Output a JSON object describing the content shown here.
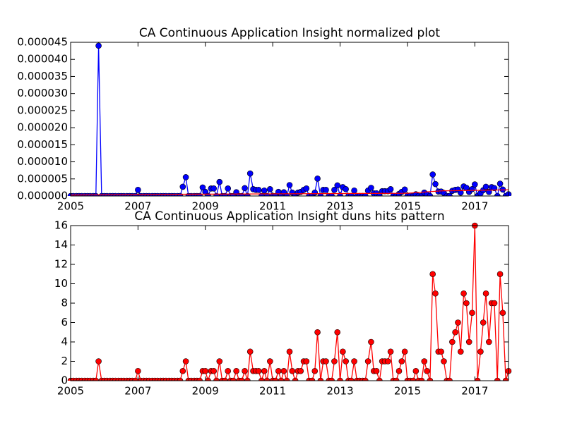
{
  "chart_data": [
    {
      "type": "line",
      "title": "CA Continuous Application Insight normalized plot",
      "x": [
        2005,
        2005.08,
        2005.17,
        2005.25,
        2005.33,
        2005.42,
        2005.5,
        2005.58,
        2005.67,
        2005.75,
        2005.83,
        2005.92,
        2006,
        2006.08,
        2006.17,
        2006.25,
        2006.33,
        2006.42,
        2006.5,
        2006.58,
        2006.67,
        2006.75,
        2006.83,
        2006.92,
        2007,
        2007.08,
        2007.17,
        2007.25,
        2007.33,
        2007.42,
        2007.5,
        2007.58,
        2007.67,
        2007.75,
        2007.83,
        2007.92,
        2008,
        2008.08,
        2008.17,
        2008.25,
        2008.33,
        2008.42,
        2008.5,
        2008.58,
        2008.67,
        2008.75,
        2008.83,
        2008.92,
        2009,
        2009.08,
        2009.17,
        2009.25,
        2009.33,
        2009.42,
        2009.5,
        2009.58,
        2009.67,
        2009.75,
        2009.83,
        2009.92,
        2010,
        2010.08,
        2010.17,
        2010.25,
        2010.33,
        2010.42,
        2010.5,
        2010.58,
        2010.67,
        2010.75,
        2010.83,
        2010.92,
        2011,
        2011.08,
        2011.17,
        2011.25,
        2011.33,
        2011.42,
        2011.5,
        2011.58,
        2011.67,
        2011.75,
        2011.83,
        2011.92,
        2012,
        2012.08,
        2012.17,
        2012.25,
        2012.33,
        2012.42,
        2012.5,
        2012.58,
        2012.67,
        2012.75,
        2012.83,
        2012.92,
        2013,
        2013.08,
        2013.17,
        2013.25,
        2013.33,
        2013.42,
        2013.5,
        2013.58,
        2013.67,
        2013.75,
        2013.83,
        2013.92,
        2014,
        2014.08,
        2014.17,
        2014.25,
        2014.33,
        2014.42,
        2014.5,
        2014.58,
        2014.67,
        2014.75,
        2014.83,
        2014.92,
        2015,
        2015.08,
        2015.17,
        2015.25,
        2015.33,
        2015.42,
        2015.5,
        2015.58,
        2015.67,
        2015.75,
        2015.83,
        2015.92,
        2016,
        2016.08,
        2016.17,
        2016.25,
        2016.33,
        2016.42,
        2016.5,
        2016.58,
        2016.67,
        2016.75,
        2016.83,
        2016.92,
        2017,
        2017.08,
        2017.17,
        2017.25,
        2017.33,
        2017.42,
        2017.5,
        2017.58,
        2017.67,
        2017.75,
        2017.83,
        2017.92,
        2018
      ],
      "series": [
        {
          "color": "#0000ff",
          "marker": true,
          "values": [
            0,
            0,
            0,
            0,
            0,
            0,
            0,
            0,
            0,
            0,
            4.4e-05,
            0,
            0,
            0,
            0,
            0,
            0,
            0,
            0,
            0,
            0,
            0,
            0,
            0,
            1.8e-06,
            0,
            0,
            0,
            0,
            0,
            0,
            0,
            0,
            0,
            0,
            0,
            0,
            0,
            0,
            0,
            2.7e-06,
            5.5e-06,
            0,
            0,
            0,
            0,
            0,
            2.5e-06,
            1.2e-06,
            0,
            2.2e-06,
            2.2e-06,
            0,
            4.1e-06,
            0,
            0,
            2.2e-06,
            0,
            0,
            1.1e-06,
            0,
            0,
            2.3e-06,
            0,
            6.6e-06,
            2e-06,
            1.8e-06,
            1.8e-06,
            0,
            1.6e-06,
            0,
            2e-06,
            0,
            0,
            1.2e-06,
            0,
            1.1e-06,
            0,
            3.2e-06,
            1e-06,
            0,
            1e-06,
            1.2e-06,
            1.8e-06,
            2.2e-06,
            0,
            0,
            1e-06,
            5.1e-06,
            0,
            1.8e-06,
            1.8e-06,
            0,
            0,
            1.8e-06,
            3.1e-06,
            0,
            2.6e-06,
            2e-06,
            0,
            0,
            1.6e-06,
            0,
            0,
            0,
            0,
            1.6e-06,
            2.4e-06,
            8e-07,
            8e-07,
            0,
            1.4e-06,
            1.4e-06,
            1.4e-06,
            2e-06,
            0,
            0,
            6e-07,
            1.2e-06,
            1.9e-06,
            0,
            0,
            0,
            5e-07,
            0,
            0,
            1e-06,
            5e-07,
            0,
            6.3e-06,
            3.5e-06,
            1.3e-06,
            1.3e-06,
            9e-07,
            0,
            0,
            1.5e-06,
            1.8e-06,
            1.9e-06,
            1e-06,
            2.8e-06,
            2.4e-06,
            1.2e-06,
            2e-06,
            3.4e-06,
            0,
            8e-07,
            1.7e-06,
            2.7e-06,
            1.2e-06,
            2.6e-06,
            2.3e-06,
            0,
            3.6e-06,
            1.9e-06,
            0,
            5e-07
          ]
        },
        {
          "color": "#ff0000",
          "marker": false,
          "x": [
            2005,
            2008.3,
            2015,
            2016,
            2018
          ],
          "values": [
            3e-07,
            5e-07,
            8e-07,
            1.5e-06,
            1.8e-06
          ]
        }
      ],
      "xlim": [
        2005,
        2018
      ],
      "xticks": [
        2005,
        2007,
        2009,
        2011,
        2013,
        2015,
        2017
      ],
      "ylim": [
        0,
        4.5e-05
      ],
      "yticks": [
        {
          "value": 0,
          "label": "0.000000"
        },
        5e-06,
        {
          "value": 1e-05,
          "label": "0.000010"
        },
        1.5e-05,
        {
          "value": 2e-05,
          "label": "0.000020"
        },
        2.5e-05,
        {
          "value": 3e-05,
          "label": "0.000030"
        },
        3.5e-05,
        {
          "value": 4e-05,
          "label": "0.000040"
        },
        4.5e-05
      ]
    },
    {
      "type": "line",
      "title": "CA Continuous Application Insight duns hits pattern",
      "x": [
        2005,
        2005.08,
        2005.17,
        2005.25,
        2005.33,
        2005.42,
        2005.5,
        2005.58,
        2005.67,
        2005.75,
        2005.83,
        2005.92,
        2006,
        2006.08,
        2006.17,
        2006.25,
        2006.33,
        2006.42,
        2006.5,
        2006.58,
        2006.67,
        2006.75,
        2006.83,
        2006.92,
        2007,
        2007.08,
        2007.17,
        2007.25,
        2007.33,
        2007.42,
        2007.5,
        2007.58,
        2007.67,
        2007.75,
        2007.83,
        2007.92,
        2008,
        2008.08,
        2008.17,
        2008.25,
        2008.33,
        2008.42,
        2008.5,
        2008.58,
        2008.67,
        2008.75,
        2008.83,
        2008.92,
        2009,
        2009.08,
        2009.17,
        2009.25,
        2009.33,
        2009.42,
        2009.5,
        2009.58,
        2009.67,
        2009.75,
        2009.83,
        2009.92,
        2010,
        2010.08,
        2010.17,
        2010.25,
        2010.33,
        2010.42,
        2010.5,
        2010.58,
        2010.67,
        2010.75,
        2010.83,
        2010.92,
        2011,
        2011.08,
        2011.17,
        2011.25,
        2011.33,
        2011.42,
        2011.5,
        2011.58,
        2011.67,
        2011.75,
        2011.83,
        2011.92,
        2012,
        2012.08,
        2012.17,
        2012.25,
        2012.33,
        2012.42,
        2012.5,
        2012.58,
        2012.67,
        2012.75,
        2012.83,
        2012.92,
        2013,
        2013.08,
        2013.17,
        2013.25,
        2013.33,
        2013.42,
        2013.5,
        2013.58,
        2013.67,
        2013.75,
        2013.83,
        2013.92,
        2014,
        2014.08,
        2014.17,
        2014.25,
        2014.33,
        2014.42,
        2014.5,
        2014.58,
        2014.67,
        2014.75,
        2014.83,
        2014.92,
        2015,
        2015.08,
        2015.17,
        2015.25,
        2015.33,
        2015.42,
        2015.5,
        2015.58,
        2015.67,
        2015.75,
        2015.83,
        2015.92,
        2016,
        2016.08,
        2016.17,
        2016.25,
        2016.33,
        2016.42,
        2016.5,
        2016.58,
        2016.67,
        2016.75,
        2016.83,
        2016.92,
        2017,
        2017.08,
        2017.17,
        2017.25,
        2017.33,
        2017.42,
        2017.5,
        2017.58,
        2017.67,
        2017.75,
        2017.83,
        2017.92,
        2018
      ],
      "series": [
        {
          "color": "#ff0000",
          "marker": true,
          "values": [
            0,
            0,
            0,
            0,
            0,
            0,
            0,
            0,
            0,
            0,
            2,
            0,
            0,
            0,
            0,
            0,
            0,
            0,
            0,
            0,
            0,
            0,
            0,
            0,
            1,
            0,
            0,
            0,
            0,
            0,
            0,
            0,
            0,
            0,
            0,
            0,
            0,
            0,
            0,
            0,
            1,
            2,
            0,
            0,
            0,
            0,
            0,
            1,
            1,
            0,
            1,
            1,
            0,
            2,
            0,
            0,
            1,
            0,
            0,
            1,
            0,
            0,
            1,
            0,
            3,
            1,
            1,
            1,
            0,
            1,
            0,
            2,
            0,
            0,
            1,
            0,
            1,
            0,
            3,
            1,
            0,
            1,
            1,
            2,
            2,
            0,
            0,
            1,
            5,
            0,
            2,
            2,
            0,
            0,
            2,
            5,
            0,
            3,
            2,
            0,
            0,
            2,
            0,
            0,
            0,
            0,
            2,
            4,
            1,
            1,
            0,
            2,
            2,
            2,
            3,
            0,
            0,
            1,
            2,
            3,
            0,
            0,
            0,
            1,
            0,
            0,
            2,
            1,
            0,
            11,
            9,
            3,
            3,
            2,
            0,
            0,
            4,
            5,
            6,
            3,
            9,
            8,
            4,
            7,
            16,
            0,
            3,
            6,
            9,
            4,
            8,
            8,
            0,
            11,
            7,
            0,
            1
          ]
        }
      ],
      "xlim": [
        2005,
        2018
      ],
      "xticks": [
        2005,
        2007,
        2009,
        2011,
        2013,
        2015,
        2017
      ],
      "ylim": [
        0,
        16
      ],
      "yticks": [
        0,
        2,
        4,
        6,
        8,
        10,
        12,
        14,
        16
      ]
    }
  ]
}
